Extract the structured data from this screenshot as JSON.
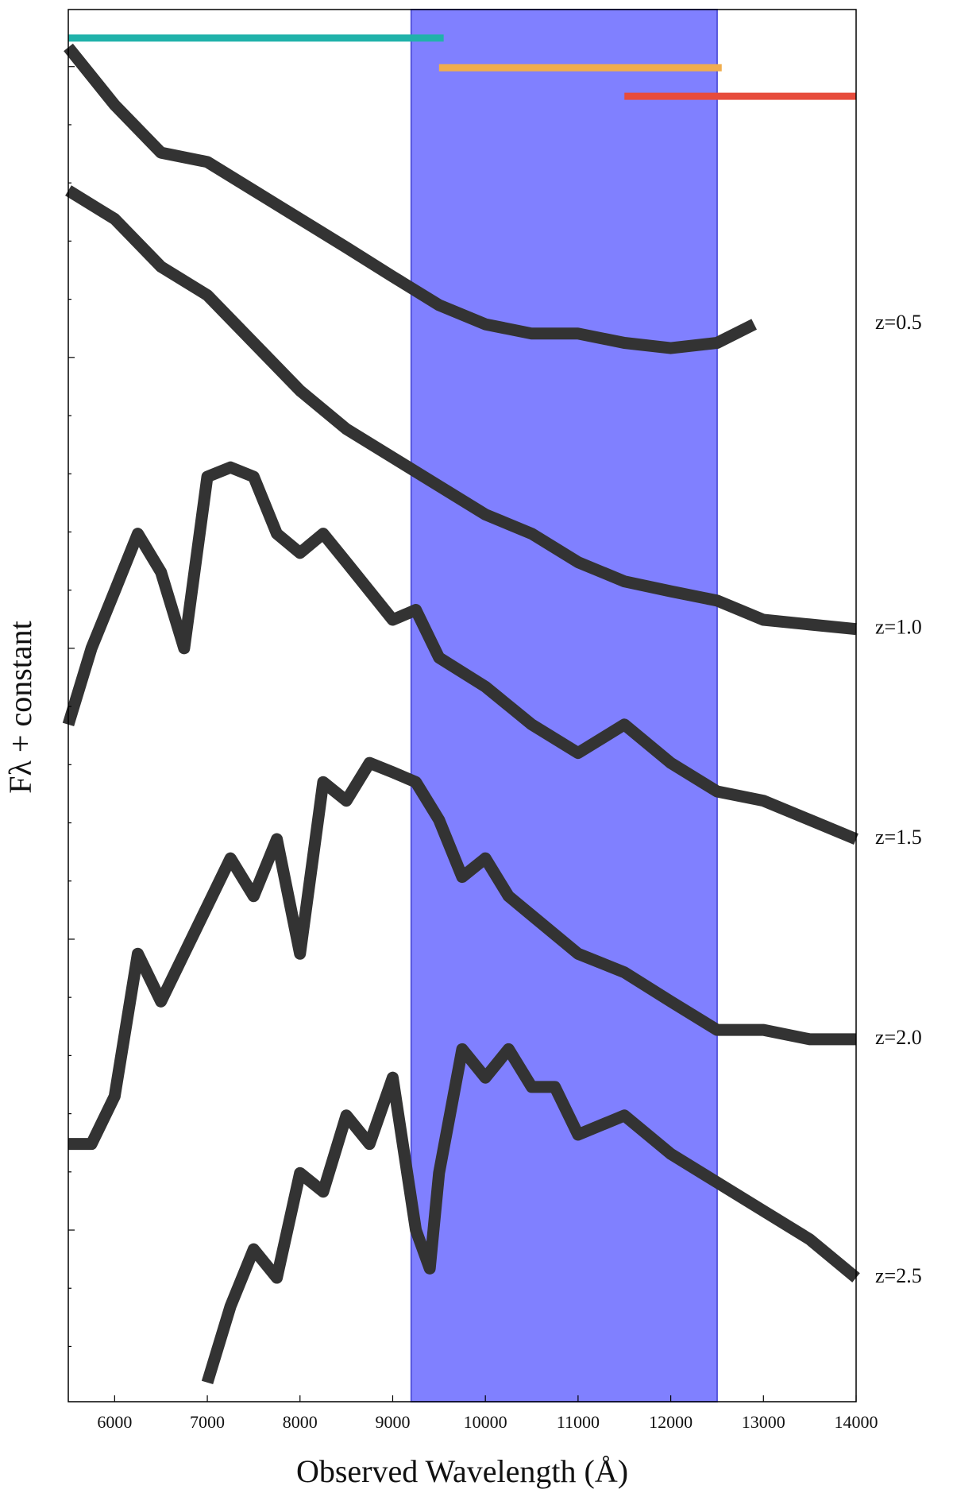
{
  "chart_data": {
    "type": "line",
    "x_label": "Observed Wavelength (Å)",
    "y_label": "Fλ + constant",
    "xlim": [
      5500,
      14000
    ],
    "xticks": [
      6000,
      7000,
      8000,
      9000,
      10000,
      11000,
      12000,
      13000,
      14000
    ],
    "ylim": [
      -2.95,
      20.98
    ],
    "yticks": [
      -2,
      -1,
      0,
      1,
      2,
      3,
      4,
      5,
      6,
      7,
      8,
      9,
      10,
      11,
      12,
      13,
      14,
      15,
      16,
      17,
      18,
      19,
      20
    ],
    "shaded_region": {
      "x": [
        9200,
        12500
      ],
      "color": "#8080ff"
    },
    "range_bars": [
      {
        "x": [
          5500,
          9550
        ],
        "y": 20.49,
        "color": "#20b2aa"
      },
      {
        "x": [
          9500,
          12550
        ],
        "y": 19.98,
        "color": "#f0ad4e"
      },
      {
        "x": [
          11500,
          14000
        ],
        "y": 19.49,
        "color": "#e74c3c"
      }
    ],
    "series": [
      {
        "name": "z=0.5",
        "color": "#333333",
        "x": [
          5500,
          6000,
          6500,
          7000,
          7500,
          8000,
          8500,
          9000,
          9500,
          10000,
          10500,
          11000,
          11500,
          12000,
          12500,
          12900
        ],
        "values": [
          20.33,
          19.34,
          18.52,
          18.36,
          17.87,
          17.38,
          16.89,
          16.39,
          15.9,
          15.57,
          15.41,
          15.41,
          15.25,
          15.16,
          15.25,
          15.57
        ]
      },
      {
        "name": "z=1.0",
        "color": "#333333",
        "x": [
          5500,
          6000,
          6500,
          7000,
          7500,
          8000,
          8500,
          9000,
          9500,
          10000,
          10500,
          11000,
          11500,
          12000,
          12500,
          13000,
          13500,
          14000
        ],
        "values": [
          17.87,
          17.38,
          16.56,
          16.07,
          15.25,
          14.43,
          13.77,
          13.28,
          12.79,
          12.3,
          11.97,
          11.48,
          11.15,
          10.98,
          10.82,
          10.49,
          10.41,
          10.33
        ]
      },
      {
        "name": "z=1.5",
        "color": "#333333",
        "x": [
          5500,
          5750,
          6000,
          6250,
          6500,
          6750,
          7000,
          7250,
          7500,
          7750,
          8000,
          8250,
          8500,
          9000,
          9250,
          9500,
          10000,
          10500,
          11000,
          11500,
          12000,
          12500,
          13000,
          13500,
          14000
        ],
        "values": [
          8.69,
          10.0,
          10.98,
          11.97,
          11.31,
          10.0,
          12.95,
          13.11,
          12.95,
          11.97,
          11.64,
          11.97,
          11.48,
          10.49,
          10.66,
          9.84,
          9.34,
          8.69,
          8.2,
          8.69,
          8.03,
          7.54,
          7.38,
          7.05,
          6.72
        ]
      },
      {
        "name": "z=2.0",
        "color": "#333333",
        "x": [
          5500,
          5750,
          6000,
          6250,
          6500,
          6750,
          7000,
          7250,
          7500,
          7750,
          8000,
          8250,
          8500,
          8750,
          9000,
          9250,
          9500,
          9750,
          10000,
          10250,
          10500,
          11000,
          11500,
          12000,
          12500,
          13000,
          13500,
          14000
        ],
        "values": [
          1.48,
          1.48,
          2.3,
          4.75,
          3.93,
          4.75,
          5.57,
          6.39,
          5.74,
          6.72,
          4.75,
          7.7,
          7.38,
          8.03,
          7.87,
          7.7,
          7.05,
          6.07,
          6.39,
          5.74,
          5.41,
          4.75,
          4.43,
          3.93,
          3.44,
          3.44,
          3.28,
          3.28
        ]
      },
      {
        "name": "z=2.5",
        "color": "#333333",
        "x": [
          7000,
          7250,
          7500,
          7750,
          8000,
          8250,
          8500,
          8750,
          9000,
          9250,
          9400,
          9500,
          9750,
          10000,
          10250,
          10500,
          10750,
          11000,
          11500,
          12000,
          12500,
          13000,
          13500,
          14000
        ],
        "values": [
          -2.62,
          -1.31,
          -0.33,
          -0.82,
          0.98,
          0.66,
          1.97,
          1.48,
          2.62,
          0,
          -0.66,
          0.98,
          3.11,
          2.62,
          3.11,
          2.46,
          2.46,
          1.64,
          1.97,
          1.31,
          0.82,
          0.33,
          -0.16,
          -0.82
        ]
      }
    ]
  }
}
